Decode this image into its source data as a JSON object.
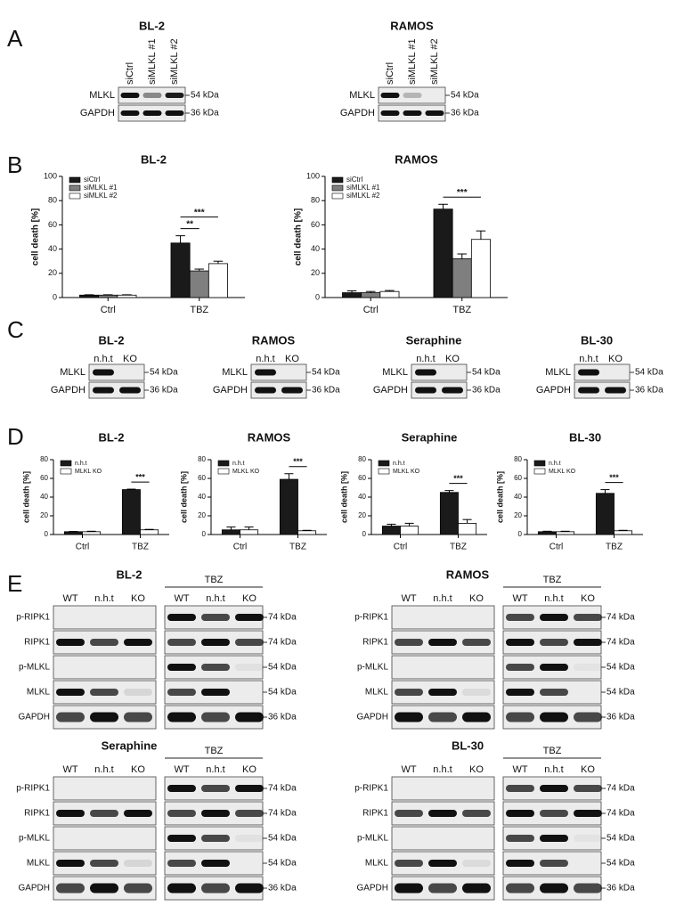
{
  "panel_labels": [
    "A",
    "B",
    "C",
    "D",
    "E"
  ],
  "panel_a": [
    {
      "title": "BL-2",
      "lanes": [
        "siCtrl",
        "siMLKL #1",
        "siMLKL #2"
      ],
      "rows": [
        {
          "protein": "MLKL",
          "size": "54 kDa"
        },
        {
          "protein": "GAPDH",
          "size": "36 kDa"
        }
      ]
    },
    {
      "title": "RAMOS",
      "lanes": [
        "siCtrl",
        "siMLKL #1",
        "siMLKL #2"
      ],
      "rows": [
        {
          "protein": "MLKL",
          "size": "54 kDa"
        },
        {
          "protein": "GAPDH",
          "size": "36 kDa"
        }
      ]
    }
  ],
  "chart_data": [
    {
      "type": "bar",
      "title": "BL-2",
      "y_label": "cell death [%]",
      "categories": [
        "Ctrl",
        "TBZ"
      ],
      "series": [
        {
          "name": "siCtrl",
          "color": "#1a1a1a",
          "values": [
            2,
            45
          ],
          "errors": [
            0.3,
            6
          ]
        },
        {
          "name": "siMLKL #1",
          "color": "#7f7f7f",
          "values": [
            2,
            22
          ],
          "errors": [
            0.3,
            1.5
          ]
        },
        {
          "name": "siMLKL #2",
          "color": "#ffffff",
          "values": [
            2,
            28
          ],
          "errors": [
            0.3,
            2
          ]
        }
      ],
      "ylim": [
        0,
        100
      ],
      "yticks": [
        0,
        20,
        40,
        60,
        80,
        100
      ],
      "annotations": [
        "***",
        "**"
      ]
    },
    {
      "type": "bar",
      "title": "RAMOS",
      "y_label": "cell death [%]",
      "categories": [
        "Ctrl",
        "TBZ"
      ],
      "series": [
        {
          "name": "siCtrl",
          "color": "#1a1a1a",
          "values": [
            4,
            73
          ],
          "errors": [
            1.5,
            4
          ]
        },
        {
          "name": "siMLKL #1",
          "color": "#7f7f7f",
          "values": [
            4,
            32
          ],
          "errors": [
            1,
            4
          ]
        },
        {
          "name": "siMLKL #2",
          "color": "#ffffff",
          "values": [
            5,
            48
          ],
          "errors": [
            0.8,
            7
          ]
        }
      ],
      "ylim": [
        0,
        100
      ],
      "yticks": [
        0,
        20,
        40,
        60,
        80,
        100
      ],
      "annotations": [
        "***"
      ]
    },
    {
      "type": "bar",
      "title": "BL-2",
      "y_label": "cell death [%]",
      "categories": [
        "Ctrl",
        "TBZ"
      ],
      "series": [
        {
          "name": "n.h.t",
          "color": "#1a1a1a",
          "values": [
            3,
            48
          ],
          "errors": [
            0.3,
            0.5
          ]
        },
        {
          "name": "MLKL KO",
          "color": "#ffffff",
          "values": [
            3,
            5
          ],
          "errors": [
            0.5,
            0.5
          ]
        }
      ],
      "ylim": [
        0,
        80
      ],
      "yticks": [
        0,
        20,
        40,
        60,
        80
      ],
      "annotations": [
        "***"
      ]
    },
    {
      "type": "bar",
      "title": "RAMOS",
      "y_label": "cell death [%]",
      "categories": [
        "Ctrl",
        "TBZ"
      ],
      "series": [
        {
          "name": "n.h.t",
          "color": "#1a1a1a",
          "values": [
            5,
            59
          ],
          "errors": [
            3,
            6
          ]
        },
        {
          "name": "MLKL KO",
          "color": "#ffffff",
          "values": [
            5,
            4
          ],
          "errors": [
            3,
            0.5
          ]
        }
      ],
      "ylim": [
        0,
        80
      ],
      "yticks": [
        0,
        20,
        40,
        60,
        80
      ],
      "annotations": [
        "***"
      ]
    },
    {
      "type": "bar",
      "title": "Seraphine",
      "y_label": "cell death [%]",
      "categories": [
        "Ctrl",
        "TBZ"
      ],
      "series": [
        {
          "name": "n.h.t",
          "color": "#1a1a1a",
          "values": [
            9,
            45
          ],
          "errors": [
            2,
            2
          ]
        },
        {
          "name": "MLKL KO",
          "color": "#ffffff",
          "values": [
            9,
            12
          ],
          "errors": [
            3,
            4
          ]
        }
      ],
      "ylim": [
        0,
        80
      ],
      "yticks": [
        0,
        20,
        40,
        60,
        80
      ],
      "annotations": [
        "***"
      ]
    },
    {
      "type": "bar",
      "title": "BL-30",
      "y_label": "cell death [%]",
      "categories": [
        "Ctrl",
        "TBZ"
      ],
      "series": [
        {
          "name": "n.h.t",
          "color": "#1a1a1a",
          "values": [
            3,
            44
          ],
          "errors": [
            0.5,
            4
          ]
        },
        {
          "name": "MLKL KO",
          "color": "#ffffff",
          "values": [
            3,
            4
          ],
          "errors": [
            0.5,
            0.5
          ]
        }
      ],
      "ylim": [
        0,
        80
      ],
      "yticks": [
        0,
        20,
        40,
        60,
        80
      ],
      "annotations": [
        "***"
      ]
    }
  ],
  "panel_c": [
    {
      "title": "BL-2",
      "lanes": [
        "n.h.t",
        "KO"
      ],
      "rows": [
        {
          "protein": "MLKL",
          "size": "54 kDa"
        },
        {
          "protein": "GAPDH",
          "size": "36 kDa"
        }
      ]
    },
    {
      "title": "RAMOS",
      "lanes": [
        "n.h.t",
        "KO"
      ],
      "rows": [
        {
          "protein": "MLKL",
          "size": "54 kDa"
        },
        {
          "protein": "GAPDH",
          "size": "36 kDa"
        }
      ]
    },
    {
      "title": "Seraphine",
      "lanes": [
        "n.h.t",
        "KO"
      ],
      "rows": [
        {
          "protein": "MLKL",
          "size": "54 kDa"
        },
        {
          "protein": "GAPDH",
          "size": "36 kDa"
        }
      ]
    },
    {
      "title": "BL-30",
      "lanes": [
        "n.h.t",
        "KO"
      ],
      "rows": [
        {
          "protein": "MLKL",
          "size": "54 kDa"
        },
        {
          "protein": "GAPDH",
          "size": "36 kDa"
        }
      ]
    }
  ],
  "panel_e": [
    {
      "title": "BL-2",
      "group": "TBZ",
      "lanes": [
        "WT",
        "n.h.t",
        "KO",
        "WT",
        "n.h.t",
        "KO"
      ],
      "rows": [
        {
          "protein": "p-RIPK1",
          "size": "74 kDa"
        },
        {
          "protein": "RIPK1",
          "size": "74 kDa"
        },
        {
          "protein": "p-MLKL",
          "size": "54 kDa"
        },
        {
          "protein": "MLKL",
          "size": "54 kDa"
        },
        {
          "protein": "GAPDH",
          "size": "36 kDa"
        }
      ]
    },
    {
      "title": "RAMOS",
      "group": "TBZ",
      "lanes": [
        "WT",
        "n.h.t",
        "KO",
        "WT",
        "n.h.t",
        "KO"
      ],
      "rows": [
        {
          "protein": "p-RIPK1",
          "size": "74 kDa"
        },
        {
          "protein": "RIPK1",
          "size": "74 kDa"
        },
        {
          "protein": "p-MLKL",
          "size": "54 kDa"
        },
        {
          "protein": "MLKL",
          "size": "54 kDa"
        },
        {
          "protein": "GAPDH",
          "size": "36 kDa"
        }
      ]
    },
    {
      "title": "Seraphine",
      "group": "TBZ",
      "lanes": [
        "WT",
        "n.h.t",
        "KO",
        "WT",
        "n.h.t",
        "KO"
      ],
      "rows": [
        {
          "protein": "p-RIPK1",
          "size": "74 kDa"
        },
        {
          "protein": "RIPK1",
          "size": "74 kDa"
        },
        {
          "protein": "p-MLKL",
          "size": "54 kDa"
        },
        {
          "protein": "MLKL",
          "size": "54 kDa"
        },
        {
          "protein": "GAPDH",
          "size": "36 kDa"
        }
      ]
    },
    {
      "title": "BL-30",
      "group": "TBZ",
      "lanes": [
        "WT",
        "n.h.t",
        "KO",
        "WT",
        "n.h.t",
        "KO"
      ],
      "rows": [
        {
          "protein": "p-RIPK1",
          "size": "74 kDa"
        },
        {
          "protein": "RIPK1",
          "size": "74 kDa"
        },
        {
          "protein": "p-MLKL",
          "size": "54 kDa"
        },
        {
          "protein": "MLKL",
          "size": "54 kDa"
        },
        {
          "protein": "GAPDH",
          "size": "36 kDa"
        }
      ]
    }
  ]
}
